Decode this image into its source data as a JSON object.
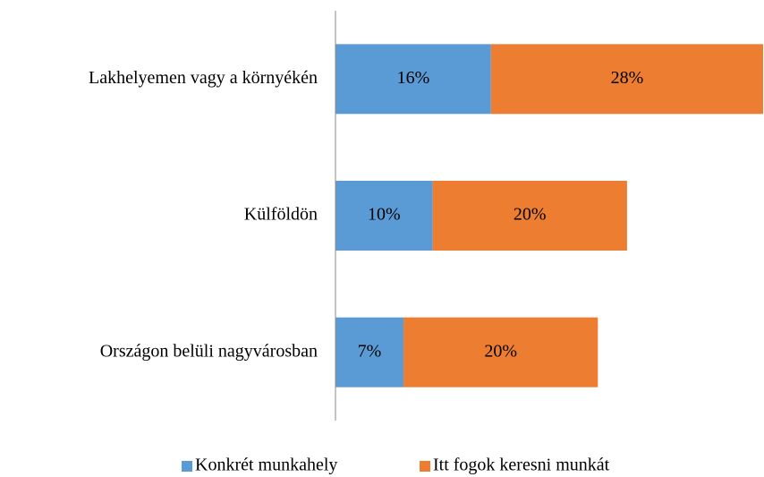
{
  "chart_data": {
    "type": "stacked_barh",
    "categories": [
      "Lakhelyemen vagy a környékén",
      "Külföldön",
      "Országon belüli nagyvárosban"
    ],
    "series": [
      {
        "name": "Konkrét munkahely",
        "color": "#5b9bd5",
        "values": [
          16,
          10,
          7
        ],
        "value_labels": [
          "16%",
          "10%",
          "7%"
        ]
      },
      {
        "name": "Itt fogok keresni munkát",
        "color": "#ed7d31",
        "values": [
          28,
          20,
          20
        ],
        "value_labels": [
          "28%",
          "20%",
          "20%"
        ]
      }
    ],
    "legend": "bottom"
  }
}
